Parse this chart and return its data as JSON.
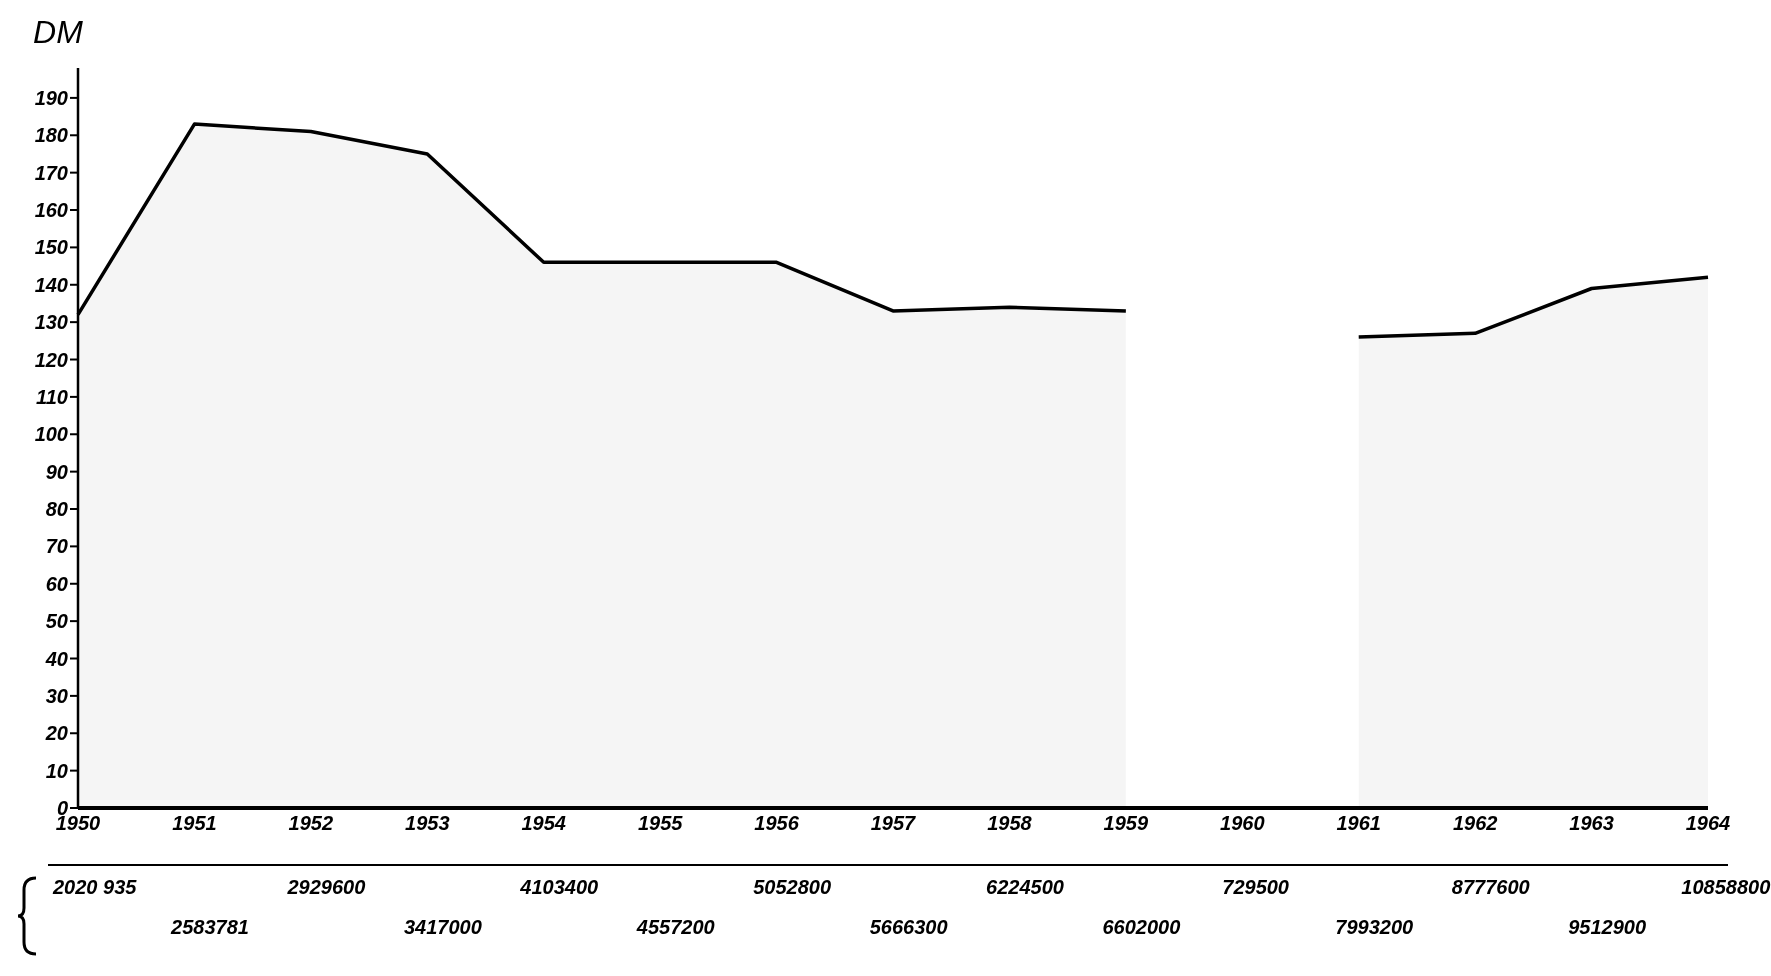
{
  "chart_data": {
    "type": "area",
    "ylabel": "DM",
    "categories": [
      "1950",
      "1951",
      "1952",
      "1953",
      "1954",
      "1955",
      "1956",
      "1957",
      "1958",
      "1959",
      "1960",
      "1961",
      "1962",
      "1963",
      "1964"
    ],
    "series": [
      {
        "color": "#000000",
        "values": [
          132,
          183,
          181,
          175,
          146,
          146,
          146,
          133,
          134,
          133,
          null,
          126,
          127,
          139,
          142
        ]
      }
    ],
    "ylim": [
      0,
      198
    ],
    "yticks": [
      0,
      10,
      20,
      30,
      40,
      50,
      60,
      70,
      80,
      90,
      100,
      110,
      120,
      130,
      140,
      150,
      160,
      170,
      180,
      190
    ],
    "marker": "none",
    "line_style": "solid",
    "annotations": [
      "2020 935",
      "2583781",
      "2929600",
      "3417000",
      "4103400",
      "4557200",
      "5052800",
      "5666300",
      "6224500",
      "6602000",
      "729500",
      "7993200",
      "8777600",
      "9512900",
      "10858800"
    ]
  }
}
